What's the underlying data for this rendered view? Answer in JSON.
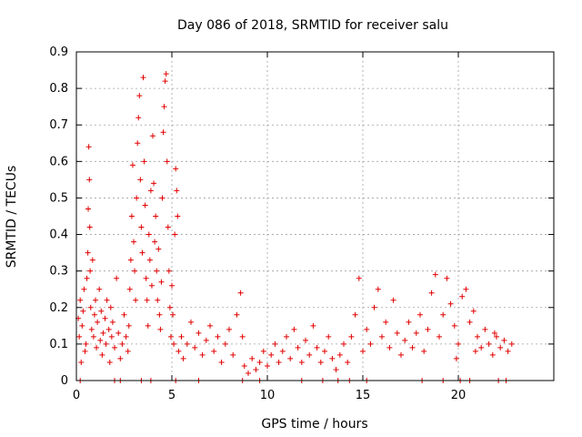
{
  "chart_data": {
    "type": "scatter",
    "title": "Day 086 of 2018, SRMTID for receiver salu",
    "xlabel": "GPS time / hours",
    "ylabel": "SRMTID / TECUs",
    "xlim": [
      0,
      25
    ],
    "ylim": [
      0,
      0.9
    ],
    "xticks": [
      0,
      5,
      10,
      15,
      20
    ],
    "xtick_labels": [
      "0",
      "5",
      "10",
      "15",
      "20"
    ],
    "yticks": [
      0,
      0.1,
      0.2,
      0.3,
      0.4,
      0.5,
      0.6,
      0.7,
      0.8,
      0.9
    ],
    "ytick_labels": [
      "0",
      "0.1",
      "0.2",
      "0.3",
      "0.4",
      "0.5",
      "0.6",
      "0.7",
      "0.8",
      "0.9"
    ],
    "grid": true,
    "marker": "+",
    "colors": {
      "series": "#e00000",
      "grid": "#a0a0a0",
      "axis": "#000000"
    },
    "series": [
      {
        "name": "SRMTID",
        "points": [
          [
            0.1,
            0.17
          ],
          [
            0.15,
            0.12
          ],
          [
            0.2,
            0.22
          ],
          [
            0.25,
            0.05
          ],
          [
            0.3,
            0.15
          ],
          [
            0.35,
            0.19
          ],
          [
            0.4,
            0.25
          ],
          [
            0.45,
            0.08
          ],
          [
            0.5,
            0.1
          ],
          [
            0.55,
            0.28
          ],
          [
            0.6,
            0.35
          ],
          [
            0.62,
            0.47
          ],
          [
            0.65,
            0.64
          ],
          [
            0.68,
            0.55
          ],
          [
            0.7,
            0.42
          ],
          [
            0.72,
            0.3
          ],
          [
            0.75,
            0.2
          ],
          [
            0.8,
            0.14
          ],
          [
            0.85,
            0.33
          ],
          [
            0.9,
            0.12
          ],
          [
            0.95,
            0.18
          ],
          [
            1.0,
            0.22
          ],
          [
            1.05,
            0.09
          ],
          [
            1.1,
            0.16
          ],
          [
            1.2,
            0.25
          ],
          [
            1.25,
            0.11
          ],
          [
            1.3,
            0.19
          ],
          [
            1.35,
            0.07
          ],
          [
            1.4,
            0.13
          ],
          [
            1.5,
            0.17
          ],
          [
            1.55,
            0.1
          ],
          [
            1.6,
            0.22
          ],
          [
            1.7,
            0.14
          ],
          [
            1.75,
            0.05
          ],
          [
            1.8,
            0.2
          ],
          [
            1.85,
            0.12
          ],
          [
            1.9,
            0.16
          ],
          [
            2.0,
            0.09
          ],
          [
            2.1,
            0.28
          ],
          [
            2.2,
            0.13
          ],
          [
            2.3,
            0.06
          ],
          [
            2.4,
            0.1
          ],
          [
            2.5,
            0.18
          ],
          [
            2.6,
            0.12
          ],
          [
            2.7,
            0.08
          ],
          [
            2.75,
            0.15
          ],
          [
            2.8,
            0.25
          ],
          [
            2.85,
            0.33
          ],
          [
            2.9,
            0.45
          ],
          [
            2.95,
            0.59
          ],
          [
            3.0,
            0.38
          ],
          [
            3.05,
            0.3
          ],
          [
            3.1,
            0.22
          ],
          [
            3.15,
            0.5
          ],
          [
            3.2,
            0.65
          ],
          [
            3.25,
            0.72
          ],
          [
            3.3,
            0.78
          ],
          [
            3.35,
            0.55
          ],
          [
            3.4,
            0.42
          ],
          [
            3.45,
            0.35
          ],
          [
            3.5,
            0.83
          ],
          [
            3.55,
            0.6
          ],
          [
            3.6,
            0.48
          ],
          [
            3.65,
            0.28
          ],
          [
            3.7,
            0.22
          ],
          [
            3.75,
            0.15
          ],
          [
            3.8,
            0.4
          ],
          [
            3.85,
            0.33
          ],
          [
            3.9,
            0.52
          ],
          [
            3.95,
            0.26
          ],
          [
            4.0,
            0.67
          ],
          [
            4.05,
            0.54
          ],
          [
            4.1,
            0.38
          ],
          [
            4.15,
            0.45
          ],
          [
            4.2,
            0.3
          ],
          [
            4.25,
            0.22
          ],
          [
            4.3,
            0.36
          ],
          [
            4.35,
            0.18
          ],
          [
            4.4,
            0.14
          ],
          [
            4.45,
            0.27
          ],
          [
            4.5,
            0.5
          ],
          [
            4.55,
            0.68
          ],
          [
            4.6,
            0.75
          ],
          [
            4.65,
            0.82
          ],
          [
            4.7,
            0.84
          ],
          [
            4.75,
            0.6
          ],
          [
            4.8,
            0.42
          ],
          [
            4.85,
            0.3
          ],
          [
            4.9,
            0.2
          ],
          [
            4.95,
            0.12
          ],
          [
            5.0,
            0.26
          ],
          [
            5.05,
            0.18
          ],
          [
            5.1,
            0.1
          ],
          [
            5.15,
            0.4
          ],
          [
            5.2,
            0.58
          ],
          [
            5.25,
            0.52
          ],
          [
            5.3,
            0.45
          ],
          [
            5.35,
            0.08
          ],
          [
            5.5,
            0.12
          ],
          [
            5.6,
            0.06
          ],
          [
            5.8,
            0.1
          ],
          [
            6.0,
            0.16
          ],
          [
            6.2,
            0.09
          ],
          [
            6.4,
            0.13
          ],
          [
            6.6,
            0.07
          ],
          [
            6.8,
            0.11
          ],
          [
            7.0,
            0.15
          ],
          [
            7.2,
            0.08
          ],
          [
            7.4,
            0.12
          ],
          [
            7.6,
            0.05
          ],
          [
            7.8,
            0.1
          ],
          [
            8.0,
            0.14
          ],
          [
            8.2,
            0.07
          ],
          [
            8.4,
            0.18
          ],
          [
            8.6,
            0.24
          ],
          [
            8.7,
            0.12
          ],
          [
            8.8,
            0.04
          ],
          [
            9.0,
            0.02
          ],
          [
            9.2,
            0.06
          ],
          [
            9.4,
            0.03
          ],
          [
            9.6,
            0.05
          ],
          [
            9.8,
            0.08
          ],
          [
            10.0,
            0.04
          ],
          [
            10.2,
            0.07
          ],
          [
            10.4,
            0.1
          ],
          [
            10.6,
            0.05
          ],
          [
            10.8,
            0.08
          ],
          [
            11.0,
            0.12
          ],
          [
            11.2,
            0.06
          ],
          [
            11.4,
            0.14
          ],
          [
            11.6,
            0.09
          ],
          [
            11.8,
            0.05
          ],
          [
            12.0,
            0.11
          ],
          [
            12.2,
            0.07
          ],
          [
            12.4,
            0.15
          ],
          [
            12.6,
            0.09
          ],
          [
            12.8,
            0.05
          ],
          [
            13.0,
            0.08
          ],
          [
            13.2,
            0.12
          ],
          [
            13.4,
            0.06
          ],
          [
            13.6,
            0.03
          ],
          [
            13.8,
            0.07
          ],
          [
            14.0,
            0.1
          ],
          [
            14.2,
            0.05
          ],
          [
            14.4,
            0.12
          ],
          [
            14.6,
            0.18
          ],
          [
            14.8,
            0.28
          ],
          [
            15.0,
            0.08
          ],
          [
            15.2,
            0.14
          ],
          [
            15.4,
            0.1
          ],
          [
            15.6,
            0.2
          ],
          [
            15.8,
            0.25
          ],
          [
            16.0,
            0.12
          ],
          [
            16.2,
            0.16
          ],
          [
            16.4,
            0.09
          ],
          [
            16.6,
            0.22
          ],
          [
            16.8,
            0.13
          ],
          [
            17.0,
            0.07
          ],
          [
            17.2,
            0.11
          ],
          [
            17.4,
            0.16
          ],
          [
            17.6,
            0.09
          ],
          [
            17.8,
            0.13
          ],
          [
            18.0,
            0.18
          ],
          [
            18.2,
            0.08
          ],
          [
            18.4,
            0.14
          ],
          [
            18.6,
            0.24
          ],
          [
            18.8,
            0.29
          ],
          [
            19.0,
            0.12
          ],
          [
            19.2,
            0.18
          ],
          [
            19.4,
            0.28
          ],
          [
            19.6,
            0.21
          ],
          [
            19.8,
            0.15
          ],
          [
            20.0,
            0.1
          ],
          [
            20.2,
            0.23
          ],
          [
            20.4,
            0.25
          ],
          [
            20.6,
            0.16
          ],
          [
            20.8,
            0.19
          ],
          [
            21.0,
            0.12
          ],
          [
            21.2,
            0.09
          ],
          [
            21.4,
            0.14
          ],
          [
            21.6,
            0.1
          ],
          [
            21.8,
            0.07
          ],
          [
            22.0,
            0.12
          ],
          [
            22.2,
            0.09
          ],
          [
            22.4,
            0.11
          ],
          [
            22.6,
            0.08
          ],
          [
            22.8,
            0.1
          ],
          [
            21.9,
            0.13
          ],
          [
            20.9,
            0.08
          ],
          [
            19.9,
            0.06
          ],
          [
            2.0,
            0.0
          ],
          [
            2.3,
            0.0
          ],
          [
            3.4,
            0.0
          ],
          [
            3.9,
            0.0
          ],
          [
            5.2,
            0.0
          ],
          [
            6.4,
            0.0
          ],
          [
            8.7,
            0.0
          ],
          [
            9.6,
            0.0
          ],
          [
            11.8,
            0.0
          ],
          [
            12.9,
            0.0
          ],
          [
            13.7,
            0.0
          ],
          [
            14.3,
            0.0
          ],
          [
            15.2,
            0.0
          ],
          [
            18.1,
            0.0
          ],
          [
            19.2,
            0.0
          ],
          [
            20.1,
            0.0
          ],
          [
            20.6,
            0.0
          ],
          [
            22.1,
            0.0
          ],
          [
            22.5,
            0.0
          ],
          [
            0.2,
            0.0
          ]
        ]
      }
    ]
  }
}
